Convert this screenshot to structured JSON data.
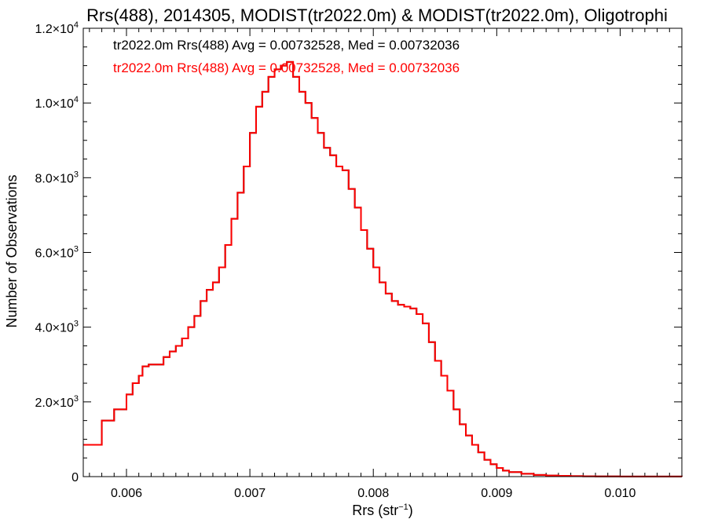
{
  "chart_data": {
    "type": "line",
    "step": true,
    "title": "Rrs(488), 2014305, MODIST(tr2022.0m) & MODIST(tr2022.0m), Oligotrophi",
    "xlabel": "Rrs (str",
    "xlabel_sup": "−1",
    "xlabel_suffix": ")",
    "ylabel": "Number of Observations",
    "xlim": [
      0.00565,
      0.0105
    ],
    "ylim": [
      0,
      12000
    ],
    "x_ticks": [
      0.006,
      0.007,
      0.008,
      0.009,
      0.01
    ],
    "x_tick_labels": [
      "0.006",
      "0.007",
      "0.008",
      "0.009",
      "0.010"
    ],
    "y_ticks": [
      0,
      2000,
      4000,
      6000,
      8000,
      10000,
      12000
    ],
    "y_tick_labels": [
      {
        "base": "0",
        "exp": ""
      },
      {
        "base": "2.0×10",
        "exp": "3"
      },
      {
        "base": "4.0×10",
        "exp": "3"
      },
      {
        "base": "6.0×10",
        "exp": "3"
      },
      {
        "base": "8.0×10",
        "exp": "3"
      },
      {
        "base": "1.0×10",
        "exp": "4"
      },
      {
        "base": "1.2×10",
        "exp": "4"
      }
    ],
    "grid": false,
    "series": [
      {
        "name": "tr2022.0m Rrs(488) Avg = 0.00732528, Med = 0.00732036",
        "color": "#000000",
        "x": [
          0.00565,
          0.0058,
          0.0059,
          0.006,
          0.00605,
          0.0061,
          0.00613,
          0.00618,
          0.00622,
          0.0063,
          0.00635,
          0.0064,
          0.00645,
          0.0065,
          0.00655,
          0.0066,
          0.00665,
          0.0067,
          0.00675,
          0.0068,
          0.00685,
          0.0069,
          0.00695,
          0.007,
          0.00705,
          0.0071,
          0.00715,
          0.0072,
          0.00725,
          0.0073,
          0.00735,
          0.0074,
          0.00745,
          0.0075,
          0.00755,
          0.0076,
          0.00765,
          0.0077,
          0.00775,
          0.0078,
          0.00785,
          0.0079,
          0.00795,
          0.008,
          0.00805,
          0.0081,
          0.00815,
          0.0082,
          0.00825,
          0.0083,
          0.00835,
          0.0084,
          0.00845,
          0.0085,
          0.00855,
          0.0086,
          0.00865,
          0.0087,
          0.00875,
          0.0088,
          0.00885,
          0.0089,
          0.00895,
          0.009,
          0.00905,
          0.0091,
          0.0092,
          0.0093,
          0.0094,
          0.0095,
          0.0096,
          0.0097,
          0.0098,
          0.01,
          0.0102,
          0.0105
        ],
        "y": [
          850,
          1500,
          1800,
          2200,
          2500,
          2700,
          2950,
          3000,
          3000,
          3200,
          3350,
          3500,
          3700,
          4000,
          4300,
          4700,
          5000,
          5200,
          5600,
          6200,
          6900,
          7600,
          8300,
          9200,
          9900,
          10300,
          10700,
          10900,
          11000,
          11100,
          10700,
          10300,
          10000,
          9600,
          9200,
          8800,
          8600,
          8300,
          8200,
          7700,
          7200,
          6600,
          6100,
          5600,
          5200,
          4900,
          4700,
          4600,
          4550,
          4500,
          4350,
          4100,
          3600,
          3100,
          2700,
          2300,
          1800,
          1400,
          1100,
          850,
          650,
          450,
          330,
          230,
          160,
          120,
          75,
          45,
          30,
          20,
          12,
          8,
          5,
          3,
          2,
          1
        ]
      },
      {
        "name": "tr2022.0m Rrs(488) Avg = 0.00732528, Med = 0.00732036",
        "color": "#ff0000",
        "x": [
          0.00565,
          0.0058,
          0.0059,
          0.006,
          0.00605,
          0.0061,
          0.00613,
          0.00618,
          0.00622,
          0.0063,
          0.00635,
          0.0064,
          0.00645,
          0.0065,
          0.00655,
          0.0066,
          0.00665,
          0.0067,
          0.00675,
          0.0068,
          0.00685,
          0.0069,
          0.00695,
          0.007,
          0.00705,
          0.0071,
          0.00715,
          0.0072,
          0.00725,
          0.0073,
          0.00735,
          0.0074,
          0.00745,
          0.0075,
          0.00755,
          0.0076,
          0.00765,
          0.0077,
          0.00775,
          0.0078,
          0.00785,
          0.0079,
          0.00795,
          0.008,
          0.00805,
          0.0081,
          0.00815,
          0.0082,
          0.00825,
          0.0083,
          0.00835,
          0.0084,
          0.00845,
          0.0085,
          0.00855,
          0.0086,
          0.00865,
          0.0087,
          0.00875,
          0.0088,
          0.00885,
          0.0089,
          0.00895,
          0.009,
          0.00905,
          0.0091,
          0.0092,
          0.0093,
          0.0094,
          0.0095,
          0.0096,
          0.0097,
          0.0098,
          0.01,
          0.0102,
          0.0105
        ],
        "y": [
          850,
          1500,
          1800,
          2200,
          2500,
          2700,
          2950,
          3000,
          3000,
          3200,
          3350,
          3500,
          3700,
          4000,
          4300,
          4700,
          5000,
          5200,
          5600,
          6200,
          6900,
          7600,
          8300,
          9200,
          9900,
          10300,
          10700,
          10900,
          11000,
          11100,
          10700,
          10300,
          10000,
          9600,
          9200,
          8800,
          8600,
          8300,
          8200,
          7700,
          7200,
          6600,
          6100,
          5600,
          5200,
          4900,
          4700,
          4600,
          4550,
          4500,
          4350,
          4100,
          3600,
          3100,
          2700,
          2300,
          1800,
          1400,
          1100,
          850,
          650,
          450,
          330,
          230,
          160,
          120,
          75,
          45,
          30,
          20,
          12,
          8,
          5,
          3,
          2,
          1
        ]
      }
    ]
  }
}
